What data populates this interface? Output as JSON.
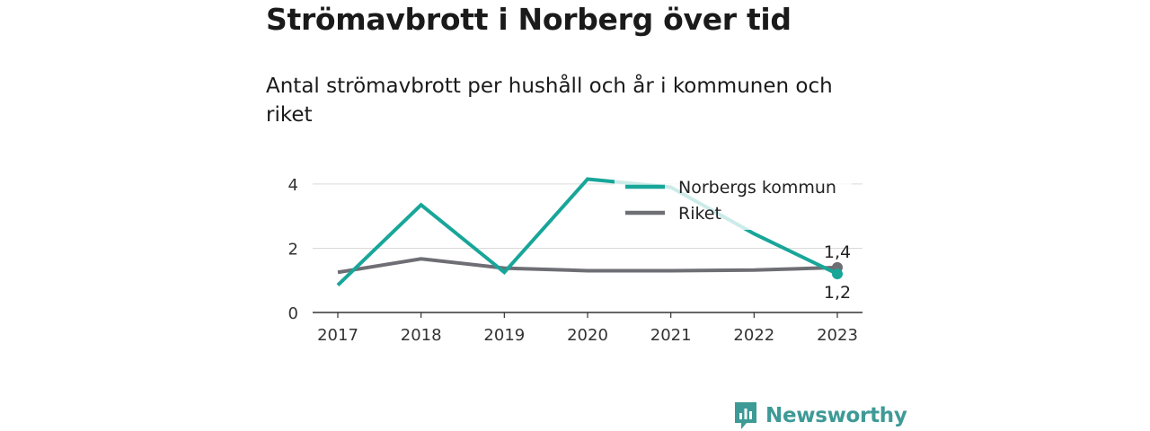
{
  "chart_data": {
    "type": "line",
    "title": "Strömavbrott i Norberg över tid",
    "subtitle": "Antal strömavbrott per hushåll och år i kommunen och riket",
    "categories": [
      "2017",
      "2018",
      "2019",
      "2020",
      "2021",
      "2022",
      "2023"
    ],
    "ylim": [
      0,
      4.5
    ],
    "yticks": [
      0,
      2,
      4
    ],
    "grid": true,
    "legend_position": "top-right",
    "series": [
      {
        "name": "Norbergs kommun",
        "color": "#18a699",
        "values": [
          0.85,
          3.35,
          1.25,
          4.15,
          3.9,
          2.45,
          1.2
        ],
        "end_label": "1,2"
      },
      {
        "name": "Riket",
        "color": "#6e6e75",
        "values": [
          1.25,
          1.67,
          1.38,
          1.3,
          1.3,
          1.32,
          1.4
        ],
        "end_label": "1,4"
      }
    ]
  },
  "brand": {
    "name": "Newsworthy",
    "icon": "newsworthy-logo-icon",
    "color": "#3e9a96"
  }
}
